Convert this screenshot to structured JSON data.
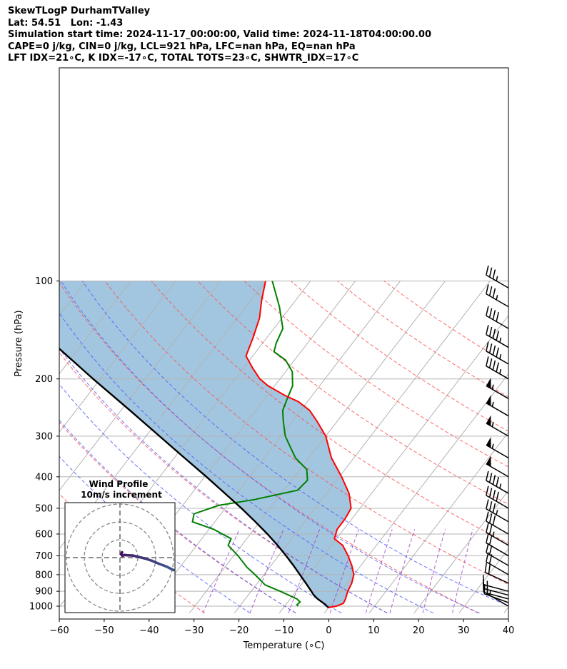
{
  "header": {
    "line1": "SkewTLogP DurhamTValley",
    "line2": "Lat: 54.51   Lon: -1.43",
    "line3": "Simulation start time: 2024-11-17_00:00:00, Valid time: 2024-11-18T04:00:00.00",
    "line4": "CAPE=0 j/kg, CIN=0 j/kg, LCL=921 hPa, LFC=nan hPa, EQ=nan hPa",
    "line5": "LFT IDX=21∘C, K IDX=-17∘C, TOTAL TOTS=23∘C, SHWTR_IDX=17∘C"
  },
  "chart_data": [
    {
      "type": "line",
      "subtype": "skew-t log-p",
      "xlabel": "Temperature (∘C)",
      "ylabel": "Pressure (hPa)",
      "xlim": [
        -60,
        40
      ],
      "ylim": [
        1050,
        100
      ],
      "yscale": "log",
      "x_ticks": [
        "−60",
        "−50",
        "−40",
        "−30",
        "−20",
        "−10",
        "0",
        "10",
        "20",
        "30",
        "40"
      ],
      "y_ticks": [
        100,
        200,
        300,
        400,
        500,
        600,
        700,
        800,
        900,
        1000
      ],
      "grid": true,
      "series": [
        {
          "role": "temperature",
          "color": "#ff0000",
          "points": [
            [
              1010,
              0.0
            ],
            [
              1000,
              1.5
            ],
            [
              980,
              2.6
            ],
            [
              950,
              2.3
            ],
            [
              900,
              1.5
            ],
            [
              850,
              1.0
            ],
            [
              800,
              0.0
            ],
            [
              750,
              -2.0
            ],
            [
              700,
              -4.5
            ],
            [
              650,
              -7.5
            ],
            [
              620,
              -10.5
            ],
            [
              580,
              -11.5
            ],
            [
              540,
              -11.5
            ],
            [
              500,
              -12.0
            ],
            [
              450,
              -15.0
            ],
            [
              400,
              -19.5
            ],
            [
              350,
              -25.0
            ],
            [
              300,
              -30.0
            ],
            [
              270,
              -34.5
            ],
            [
              250,
              -38.0
            ],
            [
              235,
              -42.0
            ],
            [
              225,
              -46.0
            ],
            [
              210,
              -51.5
            ],
            [
              200,
              -54.5
            ],
            [
              185,
              -58.0
            ],
            [
              170,
              -61.5
            ],
            [
              150,
              -63.0
            ],
            [
              130,
              -65.0
            ],
            [
              115,
              -67.5
            ],
            [
              100,
              -70.0
            ]
          ]
        },
        {
          "role": "dewpoint",
          "color": "#008000",
          "points": [
            [
              1000,
              -7.0
            ],
            [
              990,
              -7.5
            ],
            [
              970,
              -7.3
            ],
            [
              950,
              -8.5
            ],
            [
              900,
              -13.5
            ],
            [
              860,
              -18.0
            ],
            [
              800,
              -22.0
            ],
            [
              760,
              -25.0
            ],
            [
              700,
              -29.0
            ],
            [
              650,
              -33.0
            ],
            [
              620,
              -33.5
            ],
            [
              580,
              -39.0
            ],
            [
              550,
              -45.0
            ],
            [
              520,
              -46.0
            ],
            [
              490,
              -42.0
            ],
            [
              470,
              -35.0
            ],
            [
              440,
              -27.0
            ],
            [
              410,
              -26.5
            ],
            [
              380,
              -28.5
            ],
            [
              350,
              -33.0
            ],
            [
              320,
              -36.5
            ],
            [
              300,
              -39.0
            ],
            [
              270,
              -42.0
            ],
            [
              250,
              -44.0
            ],
            [
              230,
              -45.0
            ],
            [
              210,
              -46.0
            ],
            [
              190,
              -48.5
            ],
            [
              175,
              -52.0
            ],
            [
              165,
              -56.0
            ],
            [
              155,
              -57.0
            ],
            [
              140,
              -58.0
            ],
            [
              120,
              -62.5
            ],
            [
              100,
              -68.5
            ]
          ]
        },
        {
          "role": "parcel",
          "color": "#000000",
          "points": [
            [
              1010,
              0.0
            ],
            [
              980,
              -1.8
            ],
            [
              950,
              -3.9
            ],
            [
              921,
              -5.6
            ],
            [
              900,
              -6.6
            ],
            [
              850,
              -9.2
            ],
            [
              800,
              -12.0
            ],
            [
              750,
              -15.0
            ],
            [
              700,
              -18.3
            ],
            [
              650,
              -22.0
            ],
            [
              600,
              -26.2
            ],
            [
              550,
              -31.0
            ],
            [
              500,
              -36.4
            ],
            [
              450,
              -42.6
            ],
            [
              400,
              -49.6
            ],
            [
              350,
              -57.7
            ],
            [
              300,
              -67.0
            ],
            [
              250,
              -78.0
            ],
            [
              200,
              -91.6
            ],
            [
              150,
              -108.7
            ],
            [
              100,
              -131.0
            ]
          ]
        }
      ],
      "dry_adiabats_C": [
        -30,
        -10,
        10,
        30,
        50,
        70,
        90,
        110,
        130,
        150,
        170
      ],
      "moist_adiabats_C": [
        -20,
        -10,
        0,
        10,
        20,
        30,
        40
      ],
      "mixing_ratio_lines_gkg": [
        0.4,
        1,
        2,
        4,
        7,
        10,
        16,
        24
      ],
      "wind_barbs": [
        {
          "p": 1000,
          "speed": 6,
          "dir": 300
        },
        {
          "p": 975,
          "speed": 12,
          "dir": 290
        },
        {
          "p": 950,
          "speed": 16,
          "dir": 285
        },
        {
          "p": 925,
          "speed": 17,
          "dir": 285
        },
        {
          "p": 900,
          "speed": 18,
          "dir": 285
        },
        {
          "p": 850,
          "speed": 20,
          "dir": 295
        },
        {
          "p": 800,
          "speed": 20,
          "dir": 300
        },
        {
          "p": 750,
          "speed": 20,
          "dir": 300
        },
        {
          "p": 700,
          "speed": 22,
          "dir": 300
        },
        {
          "p": 650,
          "speed": 25,
          "dir": 300
        },
        {
          "p": 600,
          "speed": 30,
          "dir": 300
        },
        {
          "p": 550,
          "speed": 35,
          "dir": 300
        },
        {
          "p": 500,
          "speed": 40,
          "dir": 300
        },
        {
          "p": 450,
          "speed": 45,
          "dir": 300
        },
        {
          "p": 400,
          "speed": 50,
          "dir": 300
        },
        {
          "p": 350,
          "speed": 55,
          "dir": 300
        },
        {
          "p": 300,
          "speed": 55,
          "dir": 300
        },
        {
          "p": 260,
          "speed": 55,
          "dir": 300
        },
        {
          "p": 230,
          "speed": 55,
          "dir": 300
        },
        {
          "p": 200,
          "speed": 45,
          "dir": 300
        },
        {
          "p": 180,
          "speed": 45,
          "dir": 300
        },
        {
          "p": 160,
          "speed": 45,
          "dir": 300
        },
        {
          "p": 140,
          "speed": 40,
          "dir": 300
        },
        {
          "p": 120,
          "speed": 35,
          "dir": 300
        },
        {
          "p": 105,
          "speed": 35,
          "dir": 300
        }
      ]
    },
    {
      "type": "scatter",
      "subtype": "hodograph",
      "title": "Wind Profile",
      "subtitle": "10m/s increment",
      "ring_spacing_ms": 10,
      "points": [
        [
          1.2,
          3.0
        ],
        [
          0.6,
          2.0
        ],
        [
          1.4,
          1.0
        ],
        [
          2.5,
          1.5
        ],
        [
          4.0,
          1.3
        ],
        [
          7.0,
          1.2
        ],
        [
          10.0,
          0.5
        ],
        [
          14.0,
          -0.5
        ],
        [
          18.0,
          -1.8
        ],
        [
          22.0,
          -3.5
        ],
        [
          26.0,
          -5.0
        ],
        [
          30.0,
          -7.0
        ]
      ]
    }
  ]
}
